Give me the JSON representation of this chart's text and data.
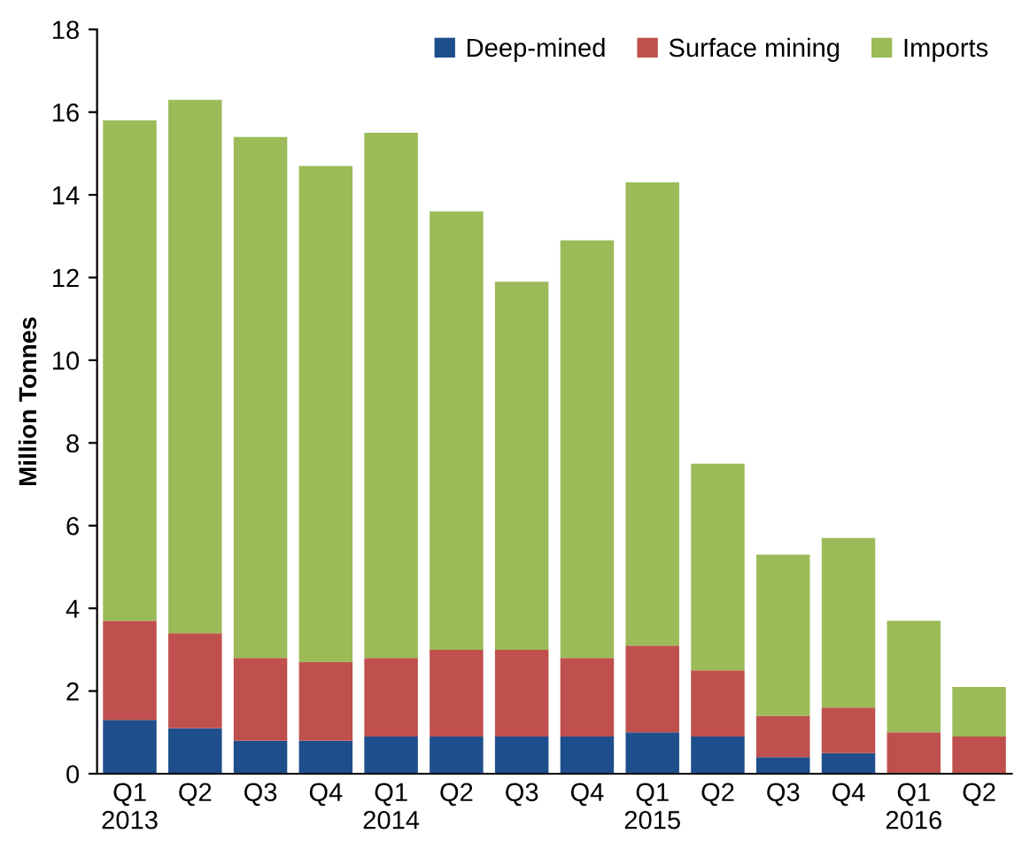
{
  "chart_data": {
    "type": "bar",
    "stacked": true,
    "ylabel": "Million Tonnes",
    "categories": [
      "Q1\n2013",
      "Q2",
      "Q3",
      "Q4",
      "Q1\n2014",
      "Q2",
      "Q3",
      "Q4",
      "Q1\n2015",
      "Q2",
      "Q3",
      "Q4",
      "Q1\n2016",
      "Q2"
    ],
    "series": [
      {
        "name": "Deep-mined",
        "color": "#1f4e8c",
        "values": [
          1.3,
          1.1,
          0.8,
          0.8,
          0.9,
          0.9,
          0.9,
          0.9,
          1.0,
          0.9,
          0.4,
          0.5,
          0,
          0
        ]
      },
      {
        "name": "Surface mining",
        "color": "#c0504d",
        "values": [
          2.4,
          2.3,
          2.0,
          1.9,
          1.9,
          2.1,
          2.1,
          1.9,
          2.1,
          1.6,
          1.0,
          1.1,
          1.0,
          0.9
        ]
      },
      {
        "name": "Imports",
        "color": "#9bbb59",
        "values": [
          12.1,
          12.9,
          12.6,
          12.0,
          12.7,
          10.6,
          8.9,
          10.1,
          11.2,
          5.0,
          3.9,
          4.1,
          2.7,
          1.2
        ]
      }
    ],
    "ylim": [
      0,
      18
    ],
    "yticks": [
      0,
      2,
      4,
      6,
      8,
      10,
      12,
      14,
      16,
      18
    ],
    "grid": false,
    "legend": "top right"
  }
}
